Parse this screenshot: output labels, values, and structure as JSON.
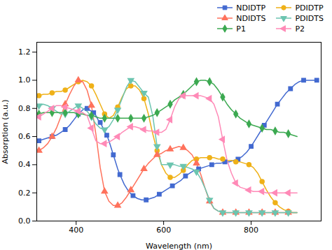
{
  "chart_data": {
    "type": "line",
    "xlabel": "Wavelength (nm)",
    "ylabel": "Absorption (a.u.)",
    "xlim": [
      310,
      960
    ],
    "ylim": [
      0.0,
      1.27
    ],
    "xticks": [
      400,
      600,
      800
    ],
    "yticks": [
      {
        "value": 0.0,
        "label": "0.0"
      },
      0.2,
      0.4,
      0.6,
      0.8,
      {
        "value": 1.0,
        "label": "1.0"
      },
      1.2
    ],
    "grid": false,
    "legend": "upper right",
    "series": [
      {
        "name": "NDIDTP",
        "marker": "square",
        "x": [
          315,
          325,
          335,
          345,
          355,
          365,
          375,
          385,
          395,
          405,
          415,
          420,
          425,
          430,
          435,
          440,
          445,
          450,
          455,
          460,
          465,
          470,
          475,
          480,
          485,
          490,
          495,
          500,
          510,
          520,
          530,
          540,
          550,
          560,
          570,
          580,
          590,
          600,
          610,
          620,
          630,
          640,
          650,
          660,
          670,
          680,
          690,
          700,
          710,
          720,
          730,
          740,
          750,
          760,
          770,
          780,
          790,
          800,
          810,
          820,
          830,
          840,
          850,
          860,
          870,
          880,
          890,
          900,
          910,
          920,
          930,
          940,
          950
        ],
        "values": [
          0.57,
          0.58,
          0.59,
          0.6,
          0.61,
          0.63,
          0.65,
          0.68,
          0.72,
          0.76,
          0.79,
          0.8,
          0.8,
          0.79,
          0.78,
          0.77,
          0.75,
          0.72,
          0.7,
          0.67,
          0.64,
          0.61,
          0.57,
          0.52,
          0.47,
          0.42,
          0.37,
          0.33,
          0.26,
          0.21,
          0.18,
          0.16,
          0.15,
          0.15,
          0.16,
          0.17,
          0.19,
          0.21,
          0.23,
          0.25,
          0.27,
          0.29,
          0.32,
          0.34,
          0.36,
          0.37,
          0.38,
          0.39,
          0.4,
          0.41,
          0.41,
          0.42,
          0.42,
          0.43,
          0.44,
          0.46,
          0.49,
          0.53,
          0.58,
          0.63,
          0.68,
          0.73,
          0.78,
          0.83,
          0.87,
          0.91,
          0.94,
          0.97,
          0.99,
          1.0,
          1.0,
          1.0,
          1.0
        ]
      },
      {
        "name": "PDIDTP",
        "marker": "circle",
        "x": [
          315,
          325,
          335,
          345,
          355,
          365,
          375,
          385,
          395,
          405,
          415,
          425,
          435,
          445,
          455,
          465,
          475,
          485,
          495,
          505,
          515,
          525,
          535,
          545,
          555,
          565,
          575,
          585,
          595,
          605,
          615,
          625,
          635,
          645,
          655,
          665,
          675,
          685,
          695,
          705,
          715,
          725,
          735,
          745,
          755,
          765,
          775,
          785,
          795,
          805,
          815,
          825,
          835,
          845,
          855,
          865,
          875,
          885,
          895,
          905
        ],
        "values": [
          0.89,
          0.9,
          0.9,
          0.91,
          0.92,
          0.92,
          0.93,
          0.95,
          0.97,
          0.99,
          1.0,
          0.99,
          0.96,
          0.9,
          0.83,
          0.76,
          0.73,
          0.75,
          0.81,
          0.88,
          0.94,
          0.96,
          0.96,
          0.93,
          0.87,
          0.76,
          0.62,
          0.5,
          0.4,
          0.34,
          0.31,
          0.31,
          0.33,
          0.36,
          0.4,
          0.43,
          0.44,
          0.45,
          0.45,
          0.45,
          0.45,
          0.44,
          0.44,
          0.43,
          0.43,
          0.42,
          0.42,
          0.41,
          0.4,
          0.38,
          0.34,
          0.28,
          0.22,
          0.17,
          0.13,
          0.1,
          0.08,
          0.07,
          0.06,
          0.06
        ]
      },
      {
        "name": "NDIDTS",
        "marker": "triangle-up",
        "x": [
          315,
          325,
          335,
          345,
          355,
          365,
          375,
          385,
          395,
          405,
          415,
          425,
          435,
          445,
          455,
          465,
          475,
          485,
          495,
          505,
          515,
          525,
          535,
          545,
          555,
          565,
          575,
          585,
          595,
          605,
          615,
          625,
          635,
          645,
          655,
          665,
          675,
          685,
          695,
          705,
          715,
          725,
          735,
          745,
          755,
          765,
          775,
          785,
          795,
          805,
          815,
          825,
          835,
          845,
          855,
          865,
          875,
          885,
          895,
          905
        ],
        "values": [
          0.5,
          0.52,
          0.55,
          0.6,
          0.66,
          0.74,
          0.83,
          0.9,
          0.96,
          1.0,
          0.99,
          0.93,
          0.82,
          0.62,
          0.38,
          0.21,
          0.14,
          0.11,
          0.11,
          0.13,
          0.17,
          0.22,
          0.27,
          0.32,
          0.37,
          0.41,
          0.44,
          0.47,
          0.48,
          0.5,
          0.51,
          0.52,
          0.53,
          0.52,
          0.5,
          0.47,
          0.41,
          0.33,
          0.23,
          0.14,
          0.09,
          0.07,
          0.06,
          0.06,
          0.06,
          0.06,
          0.06,
          0.06,
          0.06,
          0.06,
          0.06,
          0.06,
          0.06,
          0.06,
          0.06,
          0.06,
          0.06,
          0.06,
          0.06,
          0.06
        ]
      },
      {
        "name": "PDIDTS",
        "marker": "triangle-down",
        "x": [
          315,
          325,
          335,
          345,
          355,
          365,
          375,
          385,
          395,
          405,
          415,
          425,
          435,
          445,
          455,
          465,
          475,
          485,
          495,
          505,
          515,
          525,
          535,
          545,
          555,
          565,
          575,
          585,
          595,
          605,
          615,
          625,
          635,
          645,
          655,
          665,
          675,
          685,
          695,
          705,
          715,
          725,
          735,
          745,
          755,
          765,
          775,
          785,
          795,
          805,
          815,
          825,
          835,
          845,
          855,
          865,
          875,
          885,
          895,
          905
        ],
        "values": [
          0.82,
          0.83,
          0.82,
          0.8,
          0.78,
          0.76,
          0.76,
          0.78,
          0.8,
          0.82,
          0.8,
          0.78,
          0.74,
          0.69,
          0.66,
          0.65,
          0.67,
          0.72,
          0.79,
          0.87,
          0.95,
          1.0,
          0.99,
          0.95,
          0.91,
          0.88,
          0.75,
          0.53,
          0.4,
          0.4,
          0.4,
          0.4,
          0.39,
          0.39,
          0.38,
          0.37,
          0.35,
          0.3,
          0.23,
          0.15,
          0.09,
          0.07,
          0.06,
          0.06,
          0.06,
          0.06,
          0.06,
          0.06,
          0.06,
          0.06,
          0.06,
          0.06,
          0.06,
          0.06,
          0.06,
          0.06,
          0.06,
          0.06,
          0.06,
          0.06
        ]
      },
      {
        "name": "P1",
        "marker": "diamond",
        "x": [
          315,
          325,
          335,
          345,
          355,
          365,
          375,
          385,
          395,
          405,
          415,
          425,
          435,
          445,
          455,
          465,
          475,
          485,
          495,
          505,
          515,
          525,
          535,
          545,
          555,
          565,
          575,
          585,
          595,
          605,
          615,
          625,
          635,
          645,
          655,
          665,
          675,
          685,
          695,
          705,
          715,
          725,
          735,
          745,
          755,
          765,
          775,
          785,
          795,
          805,
          815,
          825,
          835,
          845,
          855,
          865,
          875,
          885,
          895,
          905
        ],
        "values": [
          0.76,
          0.77,
          0.77,
          0.77,
          0.77,
          0.77,
          0.77,
          0.77,
          0.77,
          0.76,
          0.76,
          0.75,
          0.75,
          0.74,
          0.73,
          0.73,
          0.73,
          0.73,
          0.73,
          0.73,
          0.73,
          0.73,
          0.73,
          0.73,
          0.73,
          0.74,
          0.75,
          0.77,
          0.79,
          0.81,
          0.83,
          0.86,
          0.88,
          0.9,
          0.93,
          0.96,
          0.99,
          1.0,
          1.0,
          0.99,
          0.97,
          0.93,
          0.88,
          0.83,
          0.79,
          0.76,
          0.73,
          0.71,
          0.69,
          0.68,
          0.67,
          0.66,
          0.65,
          0.65,
          0.64,
          0.63,
          0.63,
          0.62,
          0.61,
          0.6
        ]
      },
      {
        "name": "P2",
        "marker": "triangle-left",
        "x": [
          315,
          325,
          335,
          345,
          355,
          365,
          375,
          385,
          395,
          405,
          415,
          425,
          435,
          445,
          455,
          465,
          475,
          485,
          495,
          505,
          515,
          525,
          535,
          545,
          555,
          565,
          575,
          585,
          595,
          605,
          615,
          625,
          635,
          645,
          655,
          665,
          675,
          685,
          695,
          705,
          715,
          725,
          735,
          745,
          755,
          765,
          775,
          785,
          795,
          805,
          815,
          825,
          835,
          845,
          855,
          865,
          875,
          885,
          895,
          905
        ],
        "values": [
          0.74,
          0.76,
          0.78,
          0.8,
          0.82,
          0.82,
          0.81,
          0.8,
          0.79,
          0.78,
          0.77,
          0.75,
          0.66,
          0.57,
          0.55,
          0.55,
          0.56,
          0.58,
          0.6,
          0.63,
          0.65,
          0.67,
          0.67,
          0.66,
          0.65,
          0.64,
          0.64,
          0.63,
          0.63,
          0.65,
          0.72,
          0.81,
          0.87,
          0.89,
          0.89,
          0.89,
          0.89,
          0.89,
          0.88,
          0.87,
          0.83,
          0.74,
          0.58,
          0.43,
          0.34,
          0.27,
          0.24,
          0.23,
          0.22,
          0.21,
          0.21,
          0.21,
          0.2,
          0.2,
          0.2,
          0.2,
          0.2,
          0.2,
          0.2,
          0.2
        ]
      }
    ]
  }
}
